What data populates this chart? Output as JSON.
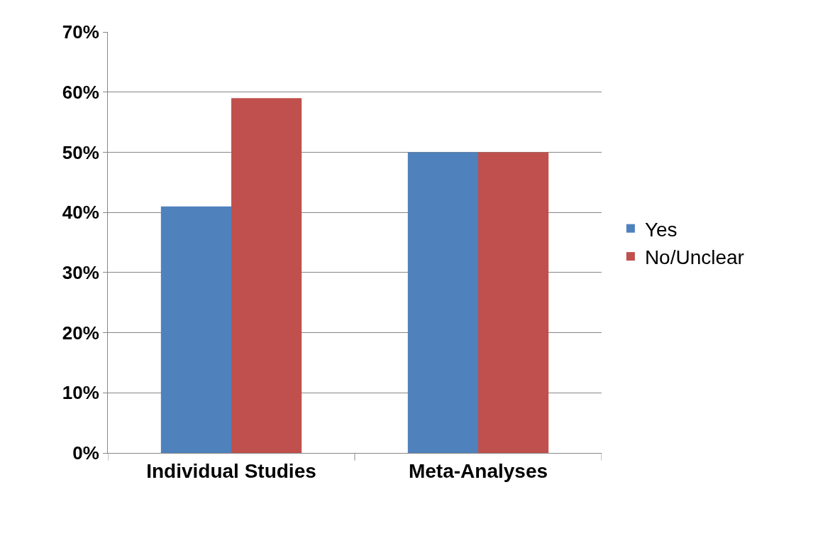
{
  "chart_data": {
    "type": "bar",
    "categories": [
      "Individual Studies",
      "Meta-Analyses"
    ],
    "series": [
      {
        "name": "Yes",
        "color": "#4f81bd",
        "values": [
          41,
          50
        ]
      },
      {
        "name": "No/Unclear",
        "color": "#c0504d",
        "values": [
          59,
          50
        ]
      }
    ],
    "ylim": [
      0,
      70
    ],
    "yticks": [
      {
        "value": 0,
        "label": "0%"
      },
      {
        "value": 10,
        "label": "10%"
      },
      {
        "value": 20,
        "label": "20%"
      },
      {
        "value": 30,
        "label": "30%"
      },
      {
        "value": 40,
        "label": "40%"
      },
      {
        "value": 50,
        "label": "50%"
      },
      {
        "value": 60,
        "label": "60%"
      },
      {
        "value": 70,
        "label": "70%"
      }
    ],
    "grid": "y",
    "legend": "right"
  }
}
